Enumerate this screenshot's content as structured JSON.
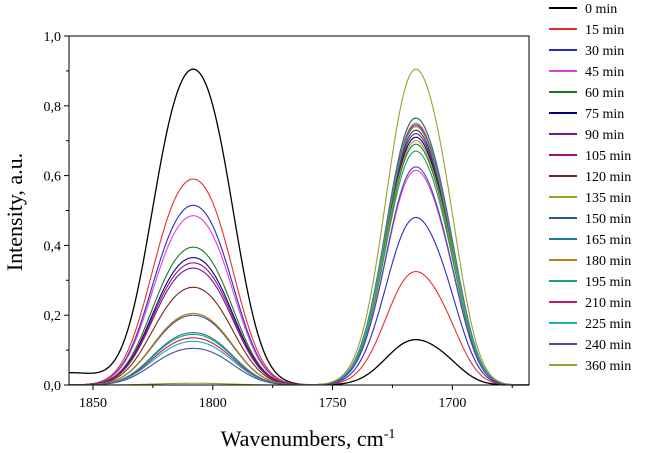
{
  "chart_data": {
    "type": "line",
    "title": "",
    "xlabel": "Wavenumbers, cm",
    "xlabel_sup": "-1",
    "ylabel": "Intensity, a.u.",
    "xlim": [
      1860,
      1668
    ],
    "ylim": [
      0,
      1.0
    ],
    "x_reversed": true,
    "grid": false,
    "legend_position": "right",
    "x_ticks": [
      1850,
      1800,
      1750,
      1700
    ],
    "x_tick_labels": [
      "1850",
      "1800",
      "1750",
      "1700"
    ],
    "y_ticks": [
      0,
      0.2,
      0.4,
      0.6,
      0.8,
      1.0
    ],
    "y_tick_labels": [
      "0,0",
      "0,2",
      "0,4",
      "0,6",
      "0,8",
      "1,0"
    ],
    "series": [
      {
        "name": "0 min",
        "color": "#000000",
        "peak1": 0.905,
        "peak2": 0.13
      },
      {
        "name": "15 min",
        "color": "#e8302a",
        "peak1": 0.59,
        "peak2": 0.325
      },
      {
        "name": "30 min",
        "color": "#2a2abf",
        "peak1": 0.515,
        "peak2": 0.48
      },
      {
        "name": "45 min",
        "color": "#e040e0",
        "peak1": 0.485,
        "peak2": 0.615
      },
      {
        "name": "60 min",
        "color": "#1a7a1a",
        "peak1": 0.395,
        "peak2": 0.69
      },
      {
        "name": "75 min",
        "color": "#000080",
        "peak1": 0.365,
        "peak2": 0.71
      },
      {
        "name": "90 min",
        "color": "#6a1a9a",
        "peak1": 0.335,
        "peak2": 0.72
      },
      {
        "name": "105 min",
        "color": "#a0106a",
        "peak1": 0.35,
        "peak2": 0.765
      },
      {
        "name": "120 min",
        "color": "#6a2a1a",
        "peak1": 0.28,
        "peak2": 0.73
      },
      {
        "name": "135 min",
        "color": "#9aa020",
        "peak1": 0.205,
        "peak2": 0.7
      },
      {
        "name": "150 min",
        "color": "#2a5a8a",
        "peak1": 0.2,
        "peak2": 0.745
      },
      {
        "name": "165 min",
        "color": "#1a7a9a",
        "peak1": 0.15,
        "peak2": 0.765
      },
      {
        "name": "180 min",
        "color": "#c07a1a",
        "peak1": 0.205,
        "peak2": 0.75
      },
      {
        "name": "195 min",
        "color": "#1aa06a",
        "peak1": 0.145,
        "peak2": 0.67
      },
      {
        "name": "210 min",
        "color": "#c01a6a",
        "peak1": 0.135,
        "peak2": 0.745
      },
      {
        "name": "225 min",
        "color": "#1ab0b0",
        "peak1": 0.125,
        "peak2": 0.74
      },
      {
        "name": "240 min",
        "color": "#4a4aa0",
        "peak1": 0.105,
        "peak2": 0.625
      },
      {
        "name": "360 min",
        "color": "#9aa030",
        "peak1": 0.005,
        "peak2": 0.905
      }
    ]
  }
}
